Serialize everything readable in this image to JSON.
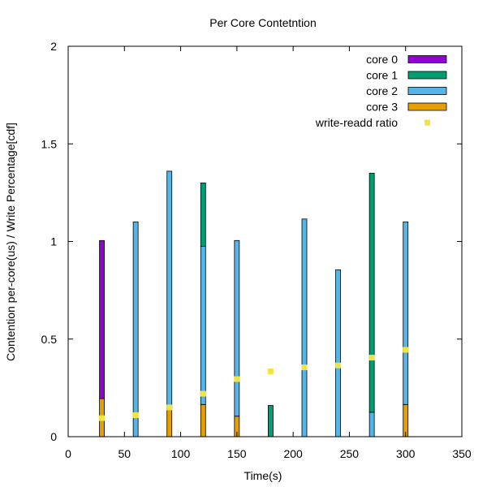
{
  "chart_data": {
    "type": "bar",
    "title": "Per Core Contetntion",
    "xlabel": "Time(s)",
    "ylabel": "Contention per-core(us) / Write Percentage[cdf]",
    "xlim": [
      0,
      350
    ],
    "ylim": [
      0,
      2
    ],
    "xticks": [
      "0",
      "50",
      "100",
      "150",
      "200",
      "250",
      "300",
      "350"
    ],
    "yticks": [
      "0",
      "0.5",
      "1",
      "1.5",
      "2"
    ],
    "x": [
      30,
      60,
      90,
      120,
      150,
      180,
      210,
      240,
      270,
      300
    ],
    "series": [
      {
        "name": "core 3",
        "color": "#e69f00",
        "values": [
          0.195,
          0,
          0.15,
          0.165,
          0.105,
          0,
          0,
          0,
          0,
          0.165
        ]
      },
      {
        "name": "core 2",
        "color": "#56b4e9",
        "values": [
          0,
          1.1,
          1.21,
          0.81,
          0.9,
          0,
          1.115,
          0.855,
          0.125,
          0.935
        ]
      },
      {
        "name": "core 1",
        "color": "#009e73",
        "values": [
          0,
          0,
          0,
          0.325,
          0,
          0.16,
          0,
          0,
          1.225,
          0
        ]
      },
      {
        "name": "core 0",
        "color": "#9400d3",
        "values": [
          0.81,
          0,
          0,
          0,
          0,
          0,
          0,
          0,
          0,
          0
        ]
      }
    ],
    "legend_order": [
      "core 0",
      "core 1",
      "core 2",
      "core 3",
      "write-readd ratio"
    ],
    "ratio": {
      "name": "write-readd ratio",
      "color": "#f0e442",
      "values": [
        0.095,
        0.11,
        0.15,
        0.22,
        0.295,
        0.335,
        0.355,
        0.365,
        0.405,
        0.445
      ]
    },
    "legend_placement": "top-right",
    "grid": false
  }
}
